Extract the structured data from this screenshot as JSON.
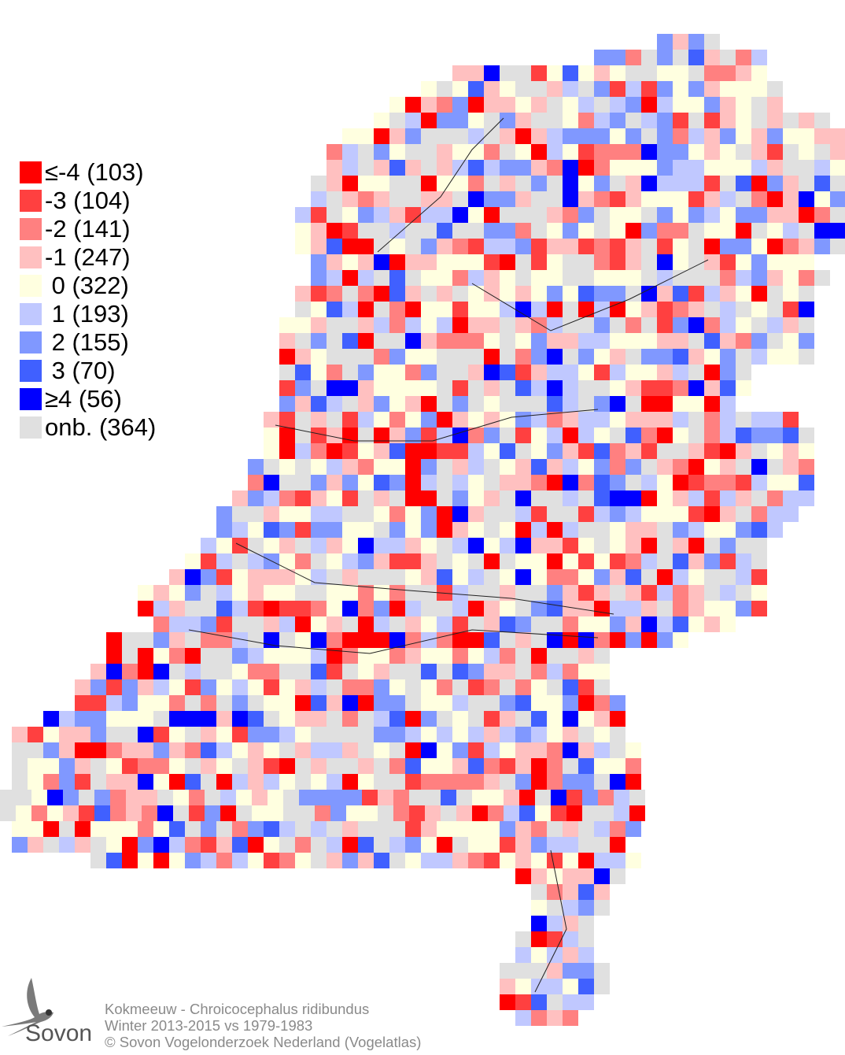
{
  "legend": [
    {
      "label": "≤-4 (103)",
      "color": "#ff0000",
      "count": 103
    },
    {
      "label": "-3 (104)",
      "color": "#ff4040",
      "count": 104
    },
    {
      "label": "-2 (141)",
      "color": "#ff8080",
      "count": 141
    },
    {
      "label": "-1 (247)",
      "color": "#ffc0c0",
      "count": 247
    },
    {
      "label": " 0 (322)",
      "color": "#ffffe0",
      "count": 322
    },
    {
      "label": " 1 (193)",
      "color": "#c0c8ff",
      "count": 193
    },
    {
      "label": " 2 (155)",
      "color": "#8098ff",
      "count": 155
    },
    {
      "label": " 3 (70)",
      "color": "#4060ff",
      "count": 70
    },
    {
      "label": "≥4 (56)",
      "color": "#0000ff",
      "count": 56
    },
    {
      "label": "onb. (364)",
      "color": "#e0e0e0",
      "count": 364
    }
  ],
  "caption": {
    "species": "Kokmeeuw - Chroicocephalus ridibundus",
    "period": "Winter 2013-2015 vs 1979-1983",
    "copyright": "© Sovon Vogelonderzoek Nederland (Vogelatlas)"
  },
  "logo": {
    "text": "Sovon",
    "icon": "swallow-icon"
  }
}
